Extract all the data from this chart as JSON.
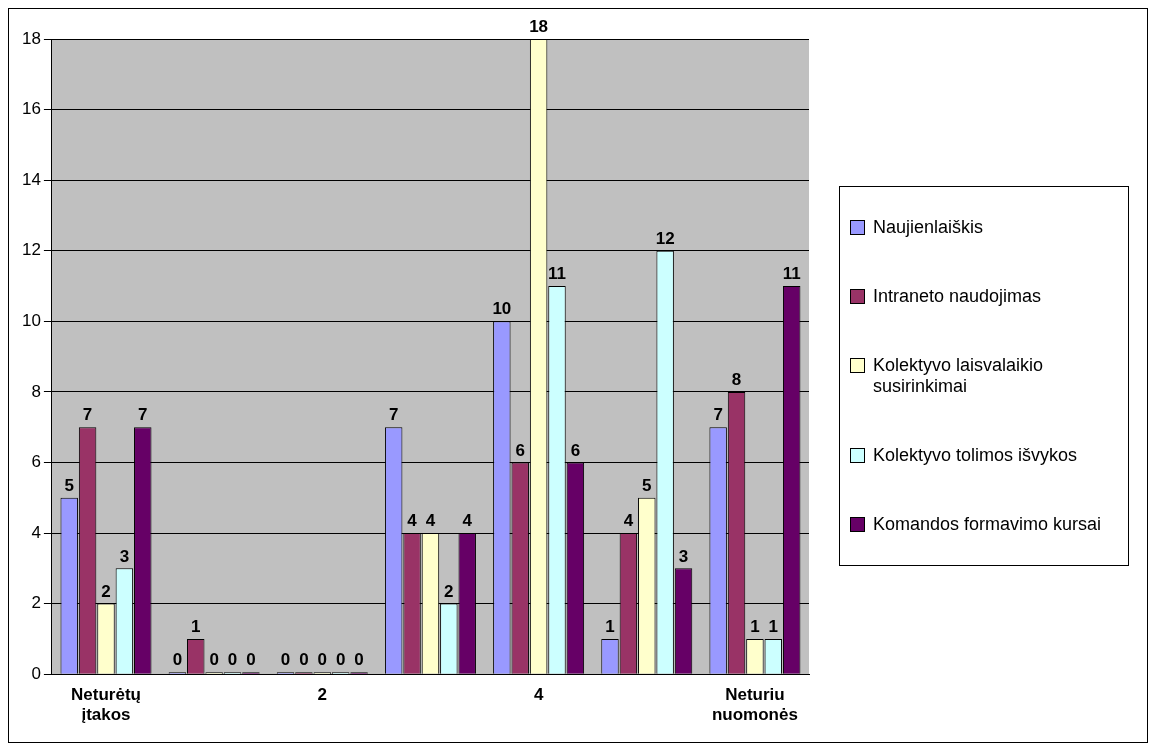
{
  "chart_data": {
    "type": "bar",
    "categories": [
      "Neturėtų įtakos",
      null,
      "2",
      null,
      "4",
      null,
      "Neturiu nuomonės"
    ],
    "series": [
      {
        "name": "Naujienlaiškis",
        "color": "#9999ff",
        "values": [
          5,
          0,
          0,
          7,
          10,
          1,
          7
        ]
      },
      {
        "name": "Intraneto naudojimas",
        "color": "#993366",
        "values": [
          7,
          1,
          0,
          4,
          6,
          4,
          8
        ]
      },
      {
        "name": "Kolektyvo laisvalaikio susirinkimai",
        "color": "#ffffcc",
        "values": [
          2,
          0,
          0,
          4,
          18,
          5,
          1
        ]
      },
      {
        "name": "Kolektyvo tolimos išvykos",
        "color": "#ccffff",
        "values": [
          3,
          0,
          0,
          2,
          11,
          12,
          1
        ]
      },
      {
        "name": "Komandos formavimo kursai",
        "color": "#660066",
        "values": [
          7,
          0,
          0,
          4,
          6,
          3,
          11
        ]
      }
    ],
    "ylim": [
      0,
      18
    ],
    "yticks": [
      0,
      2,
      4,
      6,
      8,
      10,
      12,
      14,
      16,
      18
    ],
    "grid": "y",
    "legend": "right",
    "data_labels": true
  }
}
